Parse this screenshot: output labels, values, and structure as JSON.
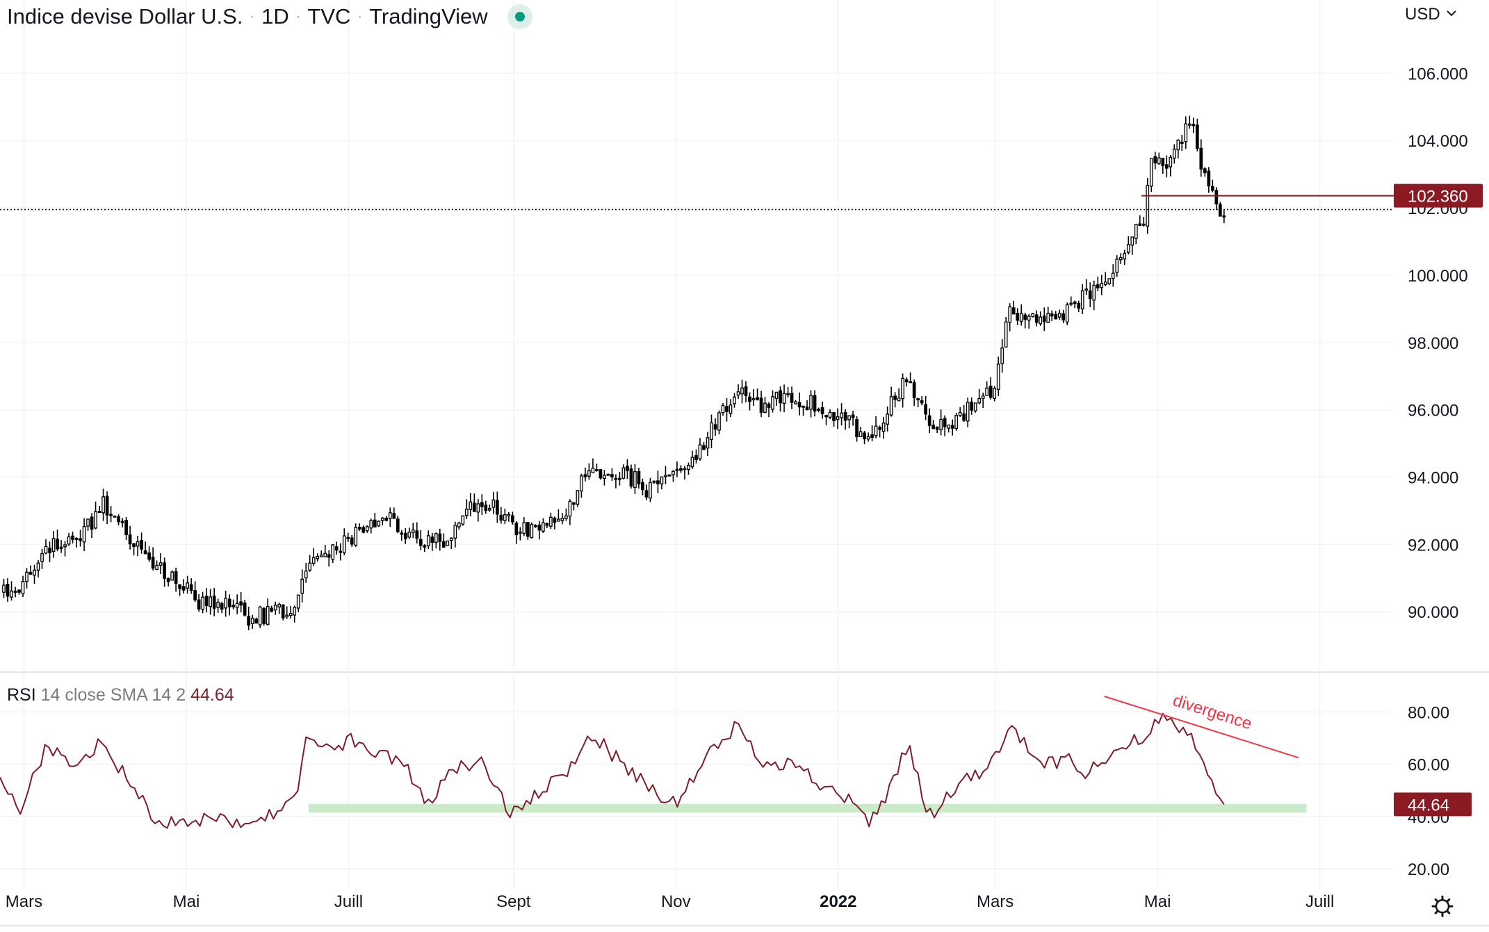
{
  "header": {
    "symbol_name": "Indice devise Dollar U.S.",
    "interval": "1D",
    "exchange": "TVC",
    "source": "TradingView",
    "separator": "·"
  },
  "price_axis": {
    "currency": "USD"
  },
  "rsi_header": {
    "name": "RSI",
    "params": "14 close SMA 14 2",
    "value": "44.64"
  },
  "gear_icon": "gear-icon",
  "colors": {
    "candle": "#000000",
    "rsi_line": "#7f1d2a",
    "price_tag": "#8b1a23",
    "divergence": "#f23645",
    "support_zone": "#c9ebc9",
    "grid": "#f0f3fa"
  },
  "chart_data": [
    {
      "type": "candlestick",
      "title": "Indice devise Dollar U.S. · 1D · TVC · TradingView",
      "y_ticks": [
        "106.000",
        "104.000",
        "102.000",
        "100.000",
        "98.000",
        "96.000",
        "94.000",
        "92.000",
        "90.000"
      ],
      "y_tick_values": [
        106,
        104,
        102,
        100,
        98,
        96,
        94,
        92,
        90
      ],
      "ylim": [
        88.25,
        107.35
      ],
      "x_ticks": [
        "Mars",
        "Mai",
        "Juill",
        "Sept",
        "Nov",
        "2022",
        "Mars",
        "Mai",
        "Juill"
      ],
      "x_tick_dates": [
        "2021-03-01",
        "2021-05-01",
        "2021-07-01",
        "2021-09-01",
        "2021-11-01",
        "2022-01-01",
        "2022-03-01",
        "2022-05-01",
        "2022-07-01"
      ],
      "x_range": [
        "2021-02-20",
        "2022-07-28"
      ],
      "price_path": [
        [
          "2021-02-20",
          90.6
        ],
        [
          "2021-03-01",
          90.9
        ],
        [
          "2021-03-10",
          91.9
        ],
        [
          "2021-03-20",
          92.0
        ],
        [
          "2021-03-31",
          93.2
        ],
        [
          "2021-04-08",
          92.3
        ],
        [
          "2021-04-18",
          91.6
        ],
        [
          "2021-04-28",
          90.9
        ],
        [
          "2021-05-07",
          90.2
        ],
        [
          "2021-05-17",
          90.3
        ],
        [
          "2021-05-25",
          89.8
        ],
        [
          "2021-06-04",
          90.0
        ],
        [
          "2021-06-10",
          90.2
        ],
        [
          "2021-06-16",
          91.3
        ],
        [
          "2021-06-24",
          91.8
        ],
        [
          "2021-07-06",
          92.5
        ],
        [
          "2021-07-16",
          92.7
        ],
        [
          "2021-07-28",
          92.2
        ],
        [
          "2021-08-05",
          92.1
        ],
        [
          "2021-08-20",
          93.4
        ],
        [
          "2021-08-31",
          92.6
        ],
        [
          "2021-09-08",
          92.4
        ],
        [
          "2021-09-20",
          93.0
        ],
        [
          "2021-09-30",
          94.2
        ],
        [
          "2021-10-12",
          94.2
        ],
        [
          "2021-10-22",
          93.6
        ],
        [
          "2021-11-05",
          94.3
        ],
        [
          "2021-11-12",
          95.1
        ],
        [
          "2021-11-24",
          96.6
        ],
        [
          "2021-12-02",
          96.1
        ],
        [
          "2021-12-15",
          96.4
        ],
        [
          "2021-12-31",
          95.9
        ],
        [
          "2022-01-14",
          95.1
        ],
        [
          "2022-01-27",
          97.1
        ],
        [
          "2022-02-04",
          95.5
        ],
        [
          "2022-02-16",
          95.8
        ],
        [
          "2022-02-28",
          96.6
        ],
        [
          "2022-03-07",
          99.0
        ],
        [
          "2022-03-16",
          98.6
        ],
        [
          "2022-03-28",
          98.9
        ],
        [
          "2022-04-05",
          99.5
        ],
        [
          "2022-04-14",
          100.2
        ],
        [
          "2022-04-26",
          101.7
        ],
        [
          "2022-04-28",
          103.6
        ],
        [
          "2022-05-06",
          103.4
        ],
        [
          "2022-05-13",
          104.6
        ],
        [
          "2022-05-17",
          103.5
        ],
        [
          "2022-05-23",
          102.1
        ],
        [
          "2022-05-26",
          101.9
        ]
      ],
      "candle_count": 320,
      "last_price": {
        "label": "102.360",
        "value": 102.36,
        "from": "2022-04-25",
        "to_axis": true
      },
      "dotted_line": {
        "value": 101.95
      }
    },
    {
      "type": "line",
      "title": "RSI 14 close SMA 14 2",
      "series": [
        {
          "name": "RSI",
          "last_value": 44.64
        }
      ],
      "y_ticks": [
        "80.00",
        "60.00",
        "40.00",
        "20.00"
      ],
      "y_tick_values": [
        80,
        60,
        40,
        20
      ],
      "ylim": [
        16,
        86.5
      ],
      "rsi_path": [
        [
          "2021-02-20",
          55
        ],
        [
          "2021-02-28",
          42
        ],
        [
          "2021-03-09",
          67
        ],
        [
          "2021-03-20",
          60
        ],
        [
          "2021-03-31",
          70
        ],
        [
          "2021-04-08",
          55
        ],
        [
          "2021-04-20",
          38
        ],
        [
          "2021-05-01",
          36
        ],
        [
          "2021-05-10",
          40
        ],
        [
          "2021-05-20",
          37
        ],
        [
          "2021-05-30",
          40
        ],
        [
          "2021-06-05",
          43
        ],
        [
          "2021-06-12",
          52
        ],
        [
          "2021-06-16",
          73
        ],
        [
          "2021-06-24",
          64
        ],
        [
          "2021-07-02",
          70
        ],
        [
          "2021-07-12",
          64
        ],
        [
          "2021-07-22",
          60
        ],
        [
          "2021-07-30",
          44
        ],
        [
          "2021-08-10",
          58
        ],
        [
          "2021-08-20",
          62
        ],
        [
          "2021-08-31",
          40
        ],
        [
          "2021-09-10",
          48
        ],
        [
          "2021-09-22",
          58
        ],
        [
          "2021-09-30",
          72
        ],
        [
          "2021-10-12",
          60
        ],
        [
          "2021-10-22",
          52
        ],
        [
          "2021-11-01",
          44
        ],
        [
          "2021-11-12",
          62
        ],
        [
          "2021-11-24",
          75
        ],
        [
          "2021-12-02",
          62
        ],
        [
          "2021-12-15",
          60
        ],
        [
          "2021-12-31",
          48
        ],
        [
          "2022-01-08",
          46
        ],
        [
          "2022-01-12",
          36
        ],
        [
          "2022-01-20",
          50
        ],
        [
          "2022-01-27",
          68
        ],
        [
          "2022-02-04",
          40
        ],
        [
          "2022-02-16",
          52
        ],
        [
          "2022-02-28",
          60
        ],
        [
          "2022-03-07",
          77
        ],
        [
          "2022-03-16",
          60
        ],
        [
          "2022-03-28",
          62
        ],
        [
          "2022-04-05",
          56
        ],
        [
          "2022-04-14",
          66
        ],
        [
          "2022-04-26",
          70
        ],
        [
          "2022-05-03",
          80
        ],
        [
          "2022-05-13",
          72
        ],
        [
          "2022-05-20",
          58
        ],
        [
          "2022-05-26",
          44.64
        ]
      ],
      "support_zone": {
        "low": 41.5,
        "high": 44.8,
        "from": "2021-06-16",
        "to": "2022-06-26"
      },
      "divergence_line": {
        "from": [
          "2022-04-11",
          86
        ],
        "to": [
          "2022-06-23",
          62.5
        ]
      },
      "annotation": {
        "text": "divergence",
        "date": "2022-05-21",
        "value": 78
      },
      "last_value": {
        "label": "44.64",
        "value": 44.64
      }
    }
  ]
}
